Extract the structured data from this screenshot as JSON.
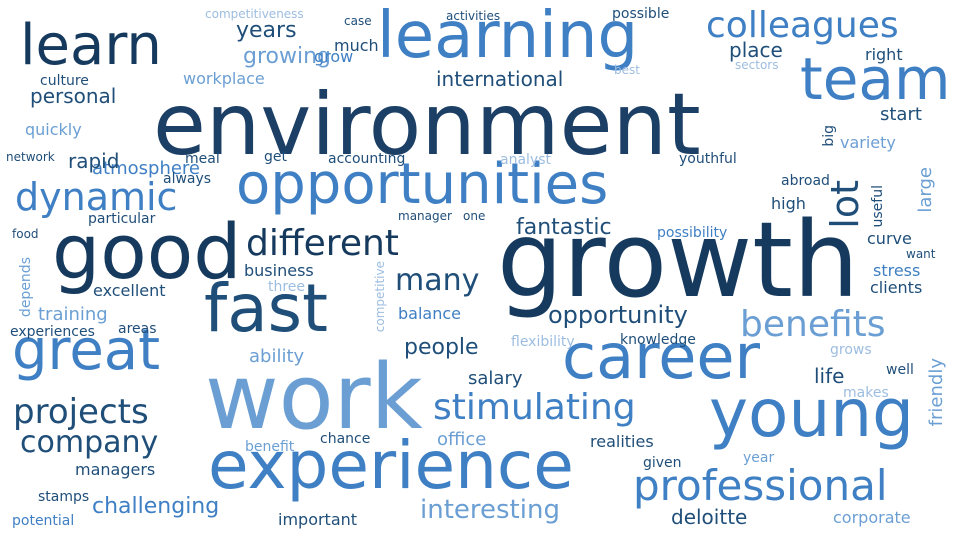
{
  "palette": {
    "darkest": "#0d2c4f",
    "dark": "#1f4e79",
    "mid": "#2f6db3",
    "medium": "#4a86c8",
    "light": "#6b9fd4",
    "pale": "#9dbde0"
  },
  "words": [
    {
      "text": "environment",
      "color": "#1c3f66"
    },
    {
      "text": "growth",
      "color": "#163a5e"
    },
    {
      "text": "work",
      "color": "#6b9fd4"
    },
    {
      "text": "fast",
      "color": "#1f4e79"
    },
    {
      "text": "good",
      "color": "#163a5e"
    },
    {
      "text": "opportunities",
      "color": "#3f7fc4"
    },
    {
      "text": "learning",
      "color": "#3f7fc4"
    },
    {
      "text": "experience",
      "color": "#3f7fc4"
    },
    {
      "text": "career",
      "color": "#3f7fc4"
    },
    {
      "text": "young",
      "color": "#3f7fc4"
    },
    {
      "text": "learn",
      "color": "#163a5e"
    },
    {
      "text": "great",
      "color": "#3f7fc4"
    },
    {
      "text": "team",
      "color": "#3f7fc4"
    },
    {
      "text": "professional",
      "color": "#3f7fc4"
    },
    {
      "text": "stimulating",
      "color": "#3f7fc4"
    },
    {
      "text": "benefits",
      "color": "#6b9fd4"
    },
    {
      "text": "colleagues",
      "color": "#3f7fc4"
    },
    {
      "text": "dynamic",
      "color": "#3f7fc4"
    },
    {
      "text": "different",
      "color": "#163a5e"
    },
    {
      "text": "projects",
      "color": "#1f4e79"
    },
    {
      "text": "company",
      "color": "#1f4e79"
    },
    {
      "text": "many",
      "color": "#1f4e79"
    },
    {
      "text": "opportunity",
      "color": "#1f4e79"
    },
    {
      "text": "interesting",
      "color": "#6b9fd4"
    },
    {
      "text": "lot",
      "color": "#1f4e79"
    },
    {
      "text": "challenging",
      "color": "#3f7fc4"
    },
    {
      "text": "people",
      "color": "#1f4e79"
    },
    {
      "text": "fantastic",
      "color": "#1f4e79"
    },
    {
      "text": "years",
      "color": "#1f4e79"
    },
    {
      "text": "growing",
      "color": "#6b9fd4"
    },
    {
      "text": "place",
      "color": "#1f4e79"
    },
    {
      "text": "personal",
      "color": "#1f4e79"
    },
    {
      "text": "international",
      "color": "#1f4e79"
    },
    {
      "text": "life",
      "color": "#1f4e79"
    },
    {
      "text": "deloitte",
      "color": "#1f4e79"
    },
    {
      "text": "salary",
      "color": "#1f4e79"
    },
    {
      "text": "atmosphere",
      "color": "#3f7fc4"
    },
    {
      "text": "rapid",
      "color": "#1f4e79"
    },
    {
      "text": "ability",
      "color": "#6b9fd4"
    },
    {
      "text": "training",
      "color": "#6b9fd4"
    },
    {
      "text": "excellent",
      "color": "#1f4e79"
    },
    {
      "text": "managers",
      "color": "#1f4e79"
    },
    {
      "text": "corporate",
      "color": "#6b9fd4"
    },
    {
      "text": "important",
      "color": "#1f4e79"
    },
    {
      "text": "business",
      "color": "#1f4e79"
    },
    {
      "text": "balance",
      "color": "#3f7fc4"
    },
    {
      "text": "realities",
      "color": "#1f4e79"
    },
    {
      "text": "quickly",
      "color": "#6b9fd4"
    },
    {
      "text": "much",
      "color": "#1f4e79"
    },
    {
      "text": "grow",
      "color": "#3f7fc4"
    },
    {
      "text": "right",
      "color": "#1f4e79"
    },
    {
      "text": "start",
      "color": "#1f4e79"
    },
    {
      "text": "variety",
      "color": "#6b9fd4"
    },
    {
      "text": "large",
      "color": "#6b9fd4"
    },
    {
      "text": "high",
      "color": "#1f4e79"
    },
    {
      "text": "curve",
      "color": "#1f4e79"
    },
    {
      "text": "stress",
      "color": "#3f7fc4"
    },
    {
      "text": "clients",
      "color": "#1f4e79"
    },
    {
      "text": "friendly",
      "color": "#6b9fd4"
    },
    {
      "text": "office",
      "color": "#6b9fd4"
    },
    {
      "text": "workplace",
      "color": "#6b9fd4"
    },
    {
      "text": "knowledge",
      "color": "#1f4e79"
    },
    {
      "text": "flexibility",
      "color": "#9dbde0"
    },
    {
      "text": "accounting",
      "color": "#1f4e79"
    },
    {
      "text": "culture",
      "color": "#1f4e79"
    },
    {
      "text": "possibility",
      "color": "#3f7fc4"
    },
    {
      "text": "youthful",
      "color": "#1f4e79"
    },
    {
      "text": "abroad",
      "color": "#1f4e79"
    },
    {
      "text": "useful",
      "color": "#1f4e79"
    },
    {
      "text": "particular",
      "color": "#1f4e79"
    },
    {
      "text": "always",
      "color": "#1f4e79"
    },
    {
      "text": "meal",
      "color": "#1f4e79"
    },
    {
      "text": "get",
      "color": "#1f4e79"
    },
    {
      "text": "analyst",
      "color": "#9dbde0"
    },
    {
      "text": "network",
      "color": "#1f4e79"
    },
    {
      "text": "manager",
      "color": "#1f4e79"
    },
    {
      "text": "one",
      "color": "#1f4e79"
    },
    {
      "text": "food",
      "color": "#1f4e79"
    },
    {
      "text": "depends",
      "color": "#6b9fd4"
    },
    {
      "text": "three",
      "color": "#9dbde0"
    },
    {
      "text": "competitive",
      "color": "#9dbde0"
    },
    {
      "text": "areas",
      "color": "#1f4e79"
    },
    {
      "text": "experiences",
      "color": "#1f4e79"
    },
    {
      "text": "grows",
      "color": "#9dbde0"
    },
    {
      "text": "well",
      "color": "#1f4e79"
    },
    {
      "text": "makes",
      "color": "#9dbde0"
    },
    {
      "text": "benefit",
      "color": "#6b9fd4"
    },
    {
      "text": "chance",
      "color": "#1f4e79"
    },
    {
      "text": "year",
      "color": "#6b9fd4"
    },
    {
      "text": "given",
      "color": "#1f4e79"
    },
    {
      "text": "stamps",
      "color": "#1f4e79"
    },
    {
      "text": "potential",
      "color": "#3f7fc4"
    },
    {
      "text": "competitiveness",
      "color": "#9dbde0"
    },
    {
      "text": "case",
      "color": "#1f4e79"
    },
    {
      "text": "activities",
      "color": "#1f4e79"
    },
    {
      "text": "possible",
      "color": "#1f4e79"
    },
    {
      "text": "best",
      "color": "#9dbde0"
    },
    {
      "text": "sectors",
      "color": "#9dbde0"
    },
    {
      "text": "big",
      "color": "#1f4e79"
    },
    {
      "text": "want",
      "color": "#1f4e79"
    }
  ]
}
